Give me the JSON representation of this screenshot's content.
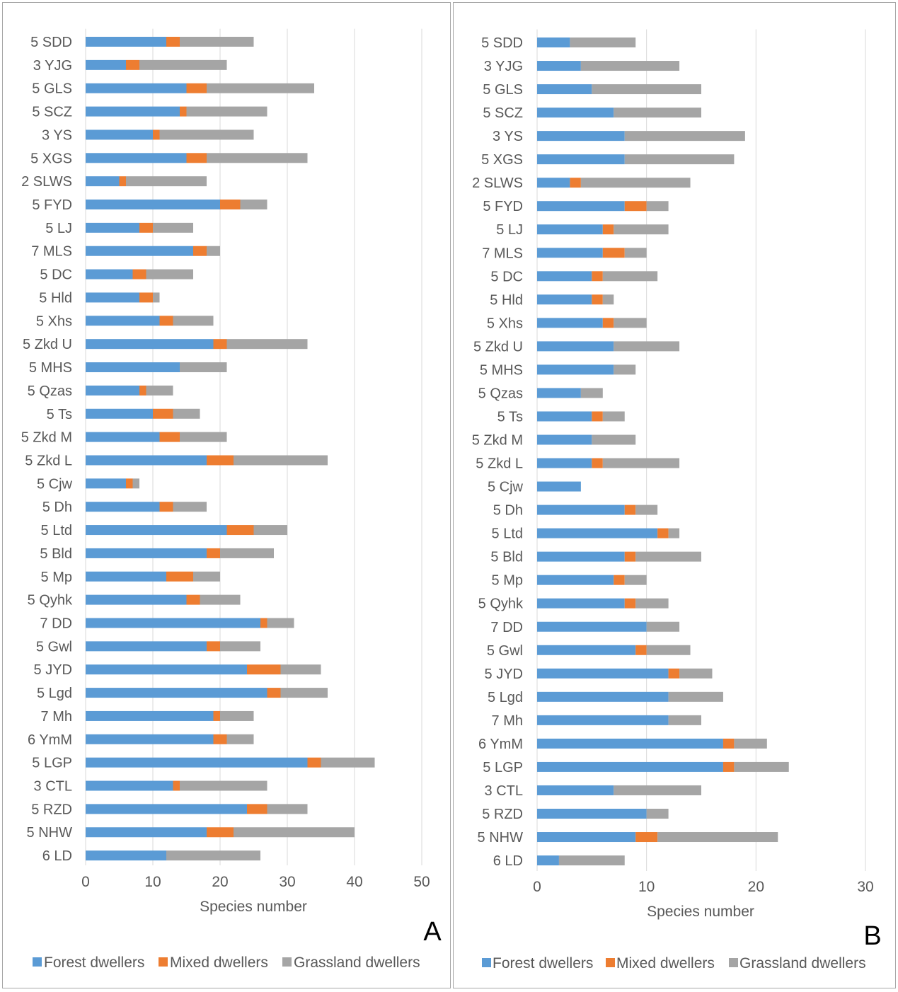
{
  "colors": {
    "forest": "#5b9bd5",
    "mixed": "#ed7d31",
    "grassland": "#a5a5a5",
    "grid": "#d9d9d9",
    "text": "#595959",
    "border": "#a6a6a6"
  },
  "chart_data": [
    {
      "type": "bar",
      "orientation": "horizontal",
      "stacked": true,
      "panel_label": "A",
      "xlabel": "Species number",
      "ylabel": "",
      "xlim": [
        0,
        50
      ],
      "xticks": [
        0,
        10,
        20,
        30,
        40,
        50
      ],
      "grid": true,
      "legend_position": "bottom",
      "categories": [
        "5 SDD",
        "3 YJG",
        "5 GLS",
        "5 SCZ",
        "3 YS",
        "5 XGS",
        "2 SLWS",
        "5 FYD",
        "5 LJ",
        "7 MLS",
        "5 DC",
        "5 Hld",
        "5 Xhs",
        "5 Zkd U",
        "5 MHS",
        "5 Qzas",
        "5 Ts",
        "5 Zkd M",
        "5 Zkd L",
        "5 Cjw",
        "5 Dh",
        "5 Ltd",
        "5 Bld",
        "5 Mp",
        "5 Qyhk",
        "7 DD",
        "5 Gwl",
        "5 JYD",
        "5 Lgd",
        "7 Mh",
        "6 YmM",
        "5 LGP",
        "3 CTL",
        "5 RZD",
        "5 NHW",
        "6 LD"
      ],
      "series": [
        {
          "name": "Forest dwellers",
          "values": [
            12,
            6,
            15,
            14,
            10,
            15,
            5,
            20,
            8,
            16,
            7,
            8,
            11,
            19,
            14,
            8,
            10,
            11,
            18,
            6,
            11,
            21,
            18,
            12,
            15,
            26,
            18,
            24,
            27,
            19,
            19,
            33,
            13,
            24,
            18,
            12
          ]
        },
        {
          "name": "Mixed dwellers",
          "values": [
            2,
            2,
            3,
            1,
            1,
            3,
            1,
            3,
            2,
            2,
            2,
            2,
            2,
            2,
            0,
            1,
            3,
            3,
            4,
            1,
            2,
            4,
            2,
            4,
            2,
            1,
            2,
            5,
            2,
            1,
            2,
            2,
            1,
            3,
            4,
            0
          ]
        },
        {
          "name": "Grassland dwellers",
          "values": [
            11,
            13,
            16,
            12,
            14,
            15,
            12,
            4,
            6,
            2,
            7,
            1,
            6,
            12,
            7,
            4,
            4,
            7,
            14,
            1,
            5,
            5,
            8,
            4,
            6,
            4,
            6,
            6,
            7,
            5,
            4,
            8,
            13,
            6,
            18,
            14
          ]
        }
      ]
    },
    {
      "type": "bar",
      "orientation": "horizontal",
      "stacked": true,
      "panel_label": "B",
      "xlabel": "Species number",
      "ylabel": "",
      "xlim": [
        0,
        30
      ],
      "xticks": [
        0,
        10,
        20,
        30
      ],
      "grid": true,
      "legend_position": "bottom",
      "categories": [
        "5 SDD",
        "3 YJG",
        "5 GLS",
        "5 SCZ",
        "3 YS",
        "5 XGS",
        "2 SLWS",
        "5 FYD",
        "5 LJ",
        "7 MLS",
        "5 DC",
        "5 Hld",
        "5 Xhs",
        "5 Zkd U",
        "5 MHS",
        "5 Qzas",
        "5 Ts",
        "5 Zkd M",
        "5 Zkd L",
        "5 Cjw",
        "5 Dh",
        "5 Ltd",
        "5 Bld",
        "5 Mp",
        "5 Qyhk",
        "7 DD",
        "5 Gwl",
        "5 JYD",
        "5 Lgd",
        "7 Mh",
        "6 YmM",
        "5 LGP",
        "3 CTL",
        "5 RZD",
        "5 NHW",
        "6 LD"
      ],
      "series": [
        {
          "name": "Forest dwellers",
          "values": [
            3,
            4,
            5,
            7,
            8,
            8,
            3,
            8,
            6,
            6,
            5,
            5,
            6,
            7,
            7,
            4,
            5,
            5,
            5,
            4,
            8,
            11,
            8,
            7,
            8,
            10,
            9,
            12,
            12,
            12,
            17,
            17,
            7,
            10,
            9,
            2
          ]
        },
        {
          "name": "Mixed dwellers",
          "values": [
            0,
            0,
            0,
            0,
            0,
            0,
            1,
            2,
            1,
            2,
            1,
            1,
            1,
            0,
            0,
            0,
            1,
            0,
            1,
            0,
            1,
            1,
            1,
            1,
            1,
            0,
            1,
            1,
            0,
            0,
            1,
            1,
            0,
            0,
            2,
            0
          ]
        },
        {
          "name": "Grassland dwellers",
          "values": [
            6,
            9,
            10,
            8,
            11,
            10,
            10,
            2,
            5,
            2,
            5,
            1,
            3,
            6,
            2,
            2,
            2,
            4,
            7,
            0,
            2,
            1,
            6,
            2,
            3,
            3,
            4,
            3,
            5,
            3,
            3,
            5,
            8,
            2,
            11,
            6
          ]
        }
      ]
    }
  ]
}
